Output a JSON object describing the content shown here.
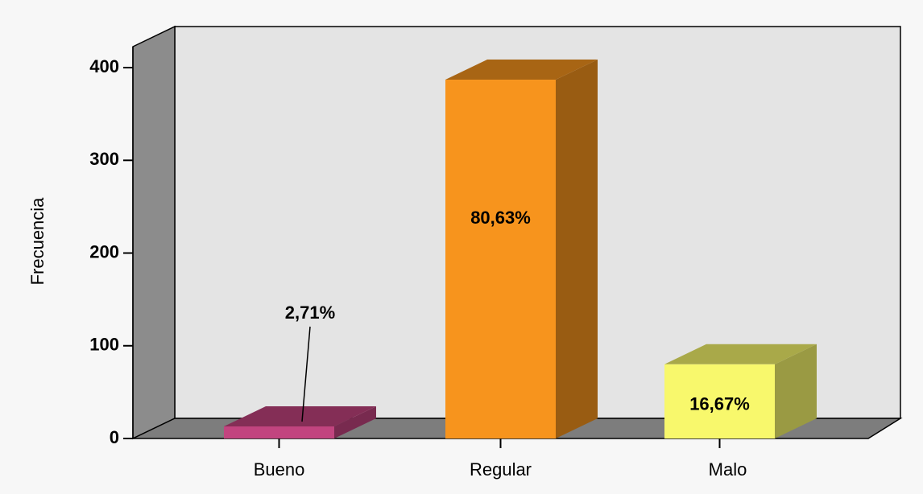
{
  "chart_data": {
    "type": "bar3d",
    "y_label": "Frecuencia",
    "categories": [
      "Bueno",
      "Regular",
      "Malo"
    ],
    "values": [
      13,
      387,
      80
    ],
    "data_labels": [
      "2,71%",
      "80,63%",
      "16,67%"
    ],
    "colors": [
      "#c2447f",
      "#f7941d",
      "#f8f86c"
    ],
    "ylim": [
      0,
      420
    ],
    "yticks": [
      0,
      100,
      200,
      300,
      400
    ]
  }
}
